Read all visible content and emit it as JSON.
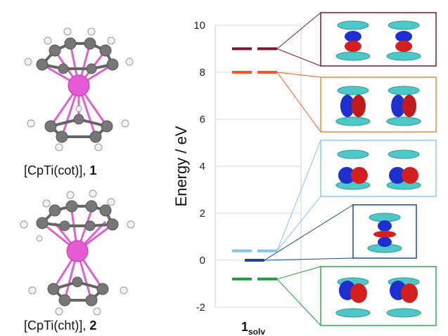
{
  "molecules": [
    {
      "formula": "[CpTi(cot)], ",
      "number": "1"
    },
    {
      "formula": "[CpTi(cht)], ",
      "number": "2"
    }
  ],
  "chart_data": {
    "type": "energy-level-diagram",
    "ylabel": "Energy / eV",
    "ylim": [
      -2,
      10
    ],
    "yticks": [
      "10",
      "8",
      "6",
      "4",
      "2",
      "0",
      "-2"
    ],
    "category": {
      "main": "1",
      "sub": "solv"
    },
    "levels": [
      {
        "energy": 9.0,
        "color": "#7b1a2e",
        "degenerate": true
      },
      {
        "energy": 8.0,
        "color": "#ef5a2a",
        "degenerate": true
      },
      {
        "energy": 0.4,
        "color": "#7fc4ea",
        "degenerate": true
      },
      {
        "energy": 0.0,
        "color": "#1b4a8c",
        "degenerate": false
      },
      {
        "energy": -0.8,
        "color": "#1f9a3c",
        "degenerate": true
      }
    ],
    "orbital_boxes": [
      {
        "border": "#7b1a2e",
        "count": 2
      },
      {
        "border": "#ef8a3c",
        "count": 2
      },
      {
        "border": "#8cc8ec",
        "count": 2
      },
      {
        "border": "#1b4a8c",
        "count": 1
      },
      {
        "border": "#3aa55a",
        "count": 2
      }
    ]
  }
}
